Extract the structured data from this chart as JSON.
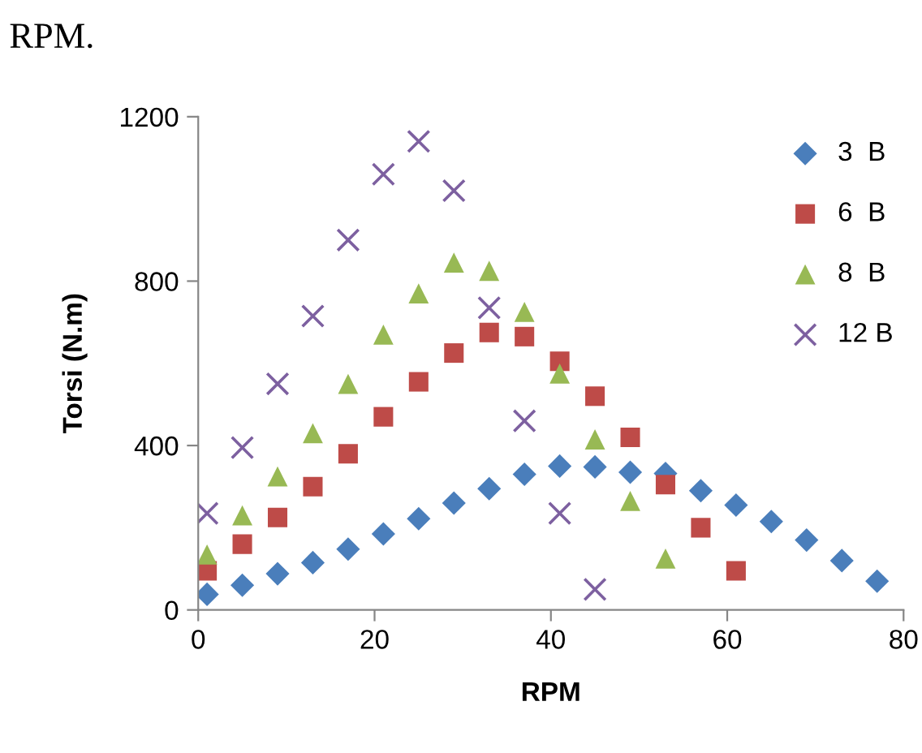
{
  "chart_data": {
    "type": "scatter",
    "xlabel": "RPM",
    "ylabel": "Torsi (N.m)",
    "annotations": [
      "RPM."
    ],
    "xlim": [
      0,
      80
    ],
    "xticks": [
      0,
      20,
      40,
      60,
      80
    ],
    "ylim": [
      0,
      1200
    ],
    "yticks": [
      0,
      400,
      800,
      1200
    ],
    "grid": false,
    "legend": "top right",
    "series": [
      {
        "name": "3  B",
        "color": "#4a7ebb",
        "marker": "diamond",
        "x": [
          1,
          5,
          9,
          13,
          17,
          21,
          25,
          29,
          33,
          37,
          41,
          45,
          49,
          53,
          57,
          61,
          65,
          69,
          73,
          77
        ],
        "values": [
          38,
          60,
          88,
          115,
          148,
          185,
          222,
          260,
          295,
          330,
          350,
          348,
          335,
          332,
          290,
          255,
          215,
          170,
          120,
          70
        ]
      },
      {
        "name": "6  B",
        "color": "#be4b48",
        "marker": "square",
        "x": [
          1,
          5,
          9,
          13,
          17,
          21,
          25,
          29,
          33,
          37,
          41,
          45,
          49,
          53,
          57,
          61
        ],
        "values": [
          95,
          160,
          225,
          300,
          380,
          470,
          555,
          625,
          675,
          665,
          605,
          520,
          420,
          305,
          200,
          95
        ]
      },
      {
        "name": "8  B",
        "color": "#98b954",
        "marker": "triangle",
        "x": [
          1,
          5,
          9,
          13,
          17,
          21,
          25,
          29,
          33,
          37,
          41,
          45,
          49,
          53
        ],
        "values": [
          135,
          230,
          325,
          430,
          550,
          670,
          770,
          845,
          825,
          725,
          575,
          415,
          265,
          125
        ]
      },
      {
        "name": "12 B",
        "color": "#7d60a0",
        "marker": "cross",
        "x": [
          1,
          5,
          9,
          13,
          17,
          21,
          25,
          29,
          33,
          37,
          41,
          45
        ],
        "values": [
          235,
          395,
          550,
          715,
          900,
          1060,
          1140,
          1020,
          735,
          460,
          235,
          50
        ]
      }
    ]
  }
}
